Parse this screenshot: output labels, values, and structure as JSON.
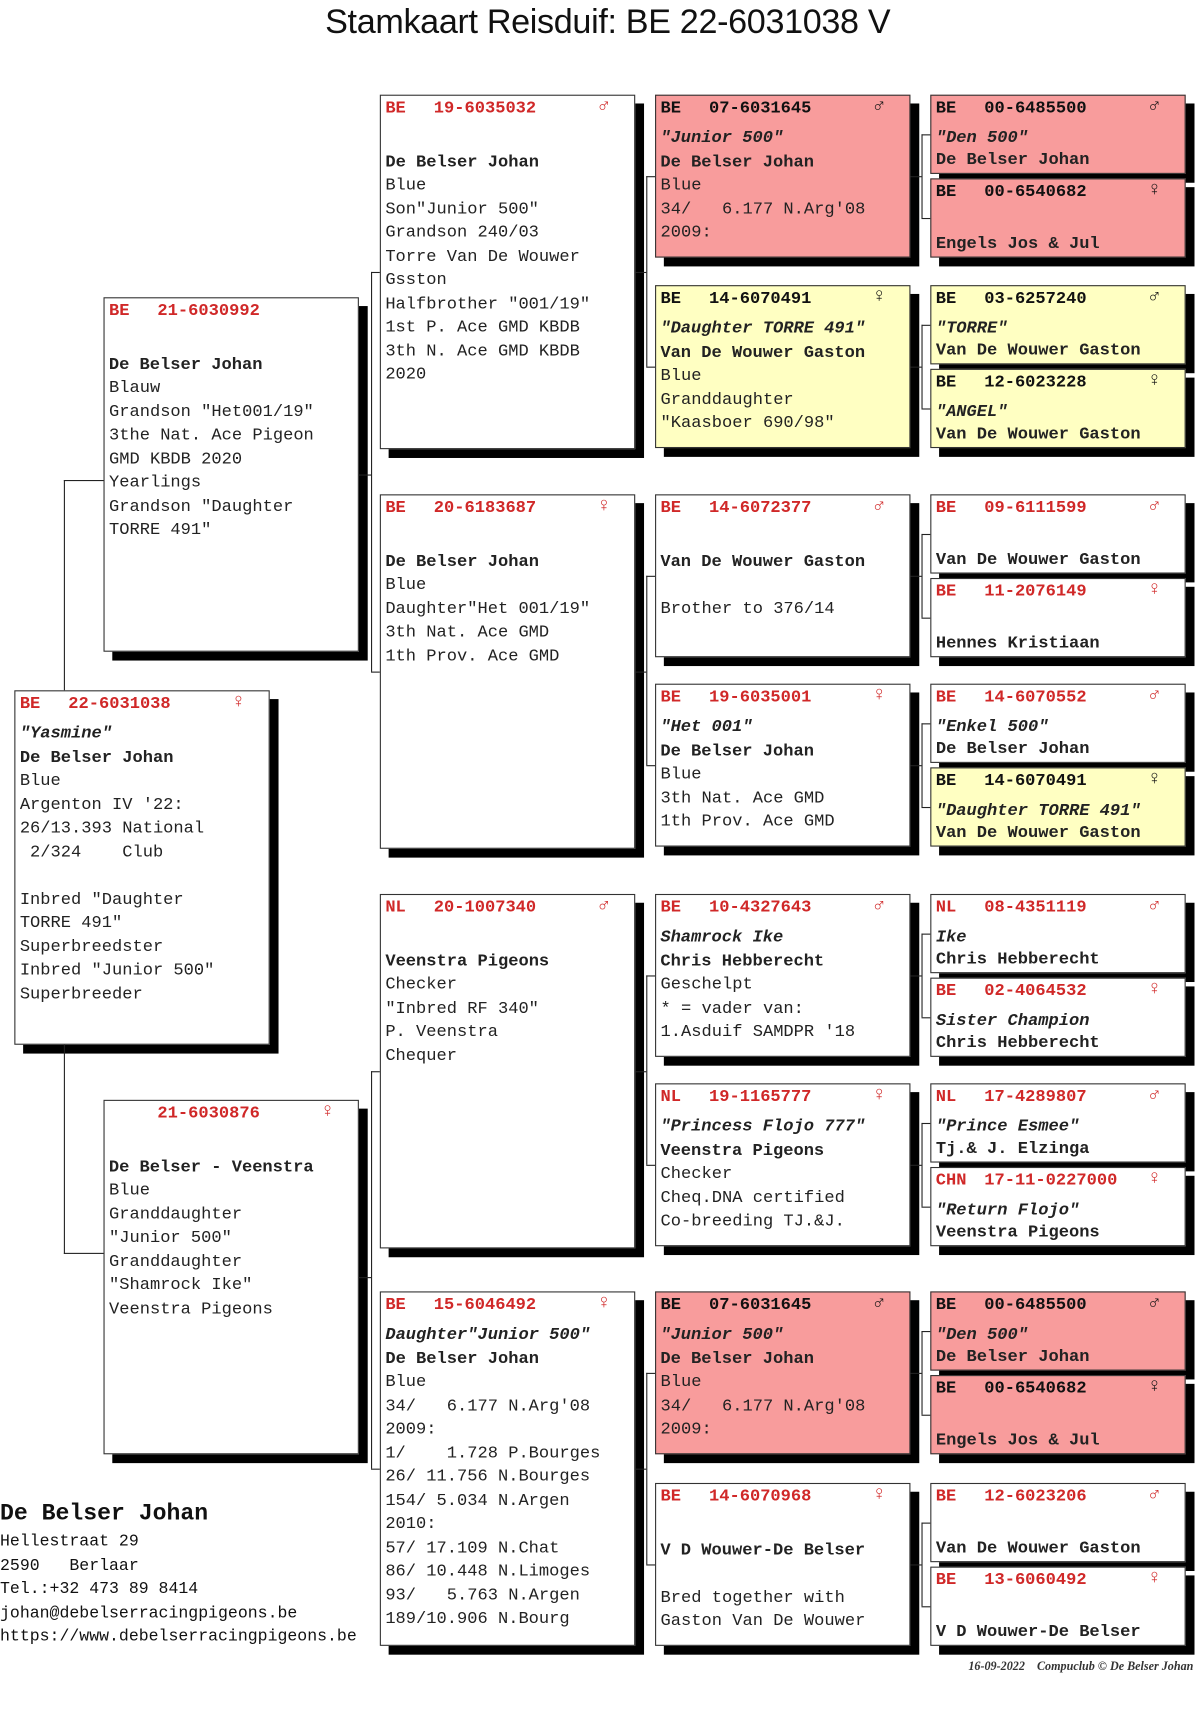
{
  "title": "Stamkaart Reisduif: BE  22-6031038 V",
  "colors": {
    "pink": "#f89c9c",
    "yellow": "#ffffc2",
    "ring_red": "#d02828"
  },
  "boxes": [
    {
      "id": "subject",
      "country": "BE",
      "ring": "22-6031038",
      "sex": "♀",
      "color": "white",
      "lines": [
        "i:\"Yasmine\"",
        "b:De Belser Johan",
        "Blue",
        "Argenton IV '22:",
        "26/13.393 National",
        " 2/324    Club",
        "",
        "Inbred \"Daughter",
        "TORRE 491\"",
        "Superbreedster",
        "Inbred \"Junior 500\"",
        "Superbreeder"
      ]
    },
    {
      "id": "sire",
      "country": "BE",
      "ring": "21-6030992",
      "sex": "",
      "color": "white",
      "lines": [
        "",
        "b:De Belser Johan",
        "Blauw",
        "Grandson \"Het001/19\"",
        "3the Nat. Ace Pigeon",
        "GMD KBDB 2020",
        "Yearlings",
        "Grandson \"Daughter",
        "TORRE 491\""
      ]
    },
    {
      "id": "dam",
      "country": "",
      "ring": "21-6030876",
      "sex": "♀",
      "color": "white",
      "lines": [
        "",
        "b:De Belser - Veenstra",
        "Blue",
        "Granddaughter",
        "\"Junior 500\"",
        "Granddaughter",
        "\"Shamrock Ike\"",
        "Veenstra Pigeons"
      ]
    },
    {
      "id": "ss",
      "country": "BE",
      "ring": "19-6035032",
      "sex": "♂",
      "color": "white",
      "lines": [
        "",
        "b:De Belser Johan",
        "Blue",
        "Son\"Junior 500\"",
        "Grandson 240/03",
        "Torre Van De Wouwer",
        "Gsston",
        "Halfbrother \"001/19\"",
        "1st P. Ace GMD KBDB",
        "3th N. Ace GMD KBDB",
        "2020"
      ]
    },
    {
      "id": "sd",
      "country": "BE",
      "ring": "20-6183687",
      "sex": "♀",
      "color": "white",
      "lines": [
        "",
        "b:De Belser Johan",
        "Blue",
        "Daughter\"Het 001/19\"",
        "3th Nat. Ace GMD",
        "1th Prov. Ace GMD"
      ]
    },
    {
      "id": "ds",
      "country": "NL",
      "ring": "20-1007340",
      "sex": "♂",
      "color": "white",
      "lines": [
        "",
        "b:Veenstra Pigeons",
        "Checker",
        "\"Inbred RF 340\"",
        "P. Veenstra",
        "Chequer"
      ]
    },
    {
      "id": "dd",
      "country": "BE",
      "ring": "15-6046492",
      "sex": "♀",
      "color": "white",
      "lines": [
        "i:Daughter\"Junior 500\"",
        "b:De Belser Johan",
        "Blue",
        "34/   6.177 N.Arg'08",
        "2009:",
        "1/    1.728 P.Bourges",
        "26/ 11.756 N.Bourges",
        "154/ 5.034 N.Argen",
        "2010:",
        "57/ 17.109 N.Chat",
        "86/ 10.448 N.Limoges",
        "93/   5.763 N.Argen",
        "189/10.906 N.Bourg"
      ]
    },
    {
      "id": "sss",
      "country": "BE",
      "ring": "07-6031645",
      "sex": "♂",
      "color": "pink",
      "lines": [
        "i:\"Junior 500\"",
        "b:De Belser Johan",
        "Blue",
        "34/   6.177 N.Arg'08",
        "2009:"
      ]
    },
    {
      "id": "ssd",
      "country": "BE",
      "ring": "14-6070491",
      "sex": "♀",
      "color": "yellow",
      "lines": [
        "i:\"Daughter TORRE 491\"",
        "b:Van De Wouwer Gaston",
        "Blue",
        "Granddaughter",
        "\"Kaasboer 690/98\""
      ]
    },
    {
      "id": "sds",
      "country": "BE",
      "ring": "14-6072377",
      "sex": "♂",
      "color": "white",
      "lines": [
        "",
        "b:Van De Wouwer Gaston",
        "",
        "Brother to 376/14"
      ]
    },
    {
      "id": "sdd",
      "country": "BE",
      "ring": "19-6035001",
      "sex": "♀",
      "color": "white",
      "lines": [
        "i:\"Het 001\"",
        "b:De Belser Johan",
        "Blue",
        "3th Nat. Ace GMD",
        "1th Prov. Ace GMD"
      ]
    },
    {
      "id": "dss",
      "country": "BE",
      "ring": "10-4327643",
      "sex": "♂",
      "color": "white",
      "lines": [
        "i:Shamrock Ike",
        "b:Chris Hebberecht",
        "Geschelpt",
        "* = vader van:",
        "1.Asduif SAMDPR '18"
      ]
    },
    {
      "id": "dsd",
      "country": "NL",
      "ring": "19-1165777",
      "sex": "♀",
      "color": "white",
      "lines": [
        "i:\"Princess Flojo 777\"",
        "b:Veenstra Pigeons",
        "Checker",
        "Cheq.DNA certified",
        "Co-breeding TJ.&J."
      ]
    },
    {
      "id": "dds",
      "country": "BE",
      "ring": "07-6031645",
      "sex": "♂",
      "color": "pink",
      "lines": [
        "i:\"Junior 500\"",
        "b:De Belser Johan",
        "Blue",
        "34/   6.177 N.Arg'08",
        "2009:"
      ]
    },
    {
      "id": "ddd",
      "country": "BE",
      "ring": "14-6070968",
      "sex": "♀",
      "color": "white",
      "lines": [
        "",
        "b:V D Wouwer-De Belser",
        "",
        "Bred together with",
        "Gaston Van De Wouwer"
      ]
    },
    {
      "id": "g4-1",
      "country": "BE",
      "ring": "00-6485500",
      "sex": "♂",
      "color": "pink",
      "lines": [
        "i:\"Den 500\"",
        "b:De Belser Johan"
      ]
    },
    {
      "id": "g4-2",
      "country": "BE",
      "ring": "00-6540682",
      "sex": "♀",
      "color": "pink",
      "lines": [
        "",
        "b:Engels Jos & Jul"
      ]
    },
    {
      "id": "g4-3",
      "country": "BE",
      "ring": "03-6257240",
      "sex": "♂",
      "color": "yellow",
      "lines": [
        "i:\"TORRE\"",
        "b:Van De Wouwer Gaston"
      ]
    },
    {
      "id": "g4-4",
      "country": "BE",
      "ring": "12-6023228",
      "sex": "♀",
      "color": "yellow",
      "lines": [
        "i:\"ANGEL\"",
        "b:Van De Wouwer Gaston"
      ]
    },
    {
      "id": "g4-5",
      "country": "BE",
      "ring": "09-6111599",
      "sex": "♂",
      "color": "white",
      "lines": [
        "",
        "b:Van De Wouwer Gaston"
      ]
    },
    {
      "id": "g4-6",
      "country": "BE",
      "ring": "11-2076149",
      "sex": "♀",
      "color": "white",
      "lines": [
        "",
        "b:Hennes Kristiaan"
      ]
    },
    {
      "id": "g4-7",
      "country": "BE",
      "ring": "14-6070552",
      "sex": "♂",
      "color": "white",
      "lines": [
        "i:\"Enkel 500\"",
        "b:De Belser Johan"
      ]
    },
    {
      "id": "g4-8",
      "country": "BE",
      "ring": "14-6070491",
      "sex": "♀",
      "color": "yellow",
      "lines": [
        "i:\"Daughter TORRE 491\"",
        "b:Van De Wouwer Gaston"
      ]
    },
    {
      "id": "g4-9",
      "country": "NL",
      "ring": "08-4351119",
      "sex": "♂",
      "color": "white",
      "lines": [
        "i:Ike",
        "b:Chris Hebberecht"
      ]
    },
    {
      "id": "g4-10",
      "country": "BE",
      "ring": "02-4064532",
      "sex": "♀",
      "color": "white",
      "lines": [
        "i:Sister Champion",
        "b:Chris Hebberecht"
      ]
    },
    {
      "id": "g4-11",
      "country": "NL",
      "ring": "17-4289807",
      "sex": "♂",
      "color": "white",
      "lines": [
        "i:\"Prince Esmee\"",
        "b:Tj.& J. Elzinga"
      ]
    },
    {
      "id": "g4-12",
      "country": "CHN",
      "ring": "17-11-0227000",
      "sex": "♀",
      "color": "white",
      "lines": [
        "i:\"Return Flojo\"",
        "b:Veenstra Pigeons"
      ]
    },
    {
      "id": "g4-13",
      "country": "BE",
      "ring": "00-6485500",
      "sex": "♂",
      "color": "pink",
      "lines": [
        "i:\"Den 500\"",
        "b:De Belser Johan"
      ]
    },
    {
      "id": "g4-14",
      "country": "BE",
      "ring": "00-6540682",
      "sex": "♀",
      "color": "pink",
      "lines": [
        "",
        "b:Engels Jos & Jul"
      ]
    },
    {
      "id": "g4-15",
      "country": "BE",
      "ring": "12-6023206",
      "sex": "♂",
      "color": "white",
      "lines": [
        "",
        "b:Van De Wouwer Gaston"
      ]
    },
    {
      "id": "g4-16",
      "country": "BE",
      "ring": "13-6060492",
      "sex": "♀",
      "color": "white",
      "lines": [
        "",
        "b:V D Wouwer-De Belser"
      ]
    }
  ],
  "owner": {
    "name": "De Belser Johan",
    "lines": [
      "Hellestraat 29",
      "2590   Berlaar",
      "Tel.:+32 473 89 8414",
      "johan@debelserracingpigeons.be",
      "https://www.debelserracingpigeons.be"
    ]
  },
  "footer": "16-09-2022    Compuclub © De Belser Johan"
}
